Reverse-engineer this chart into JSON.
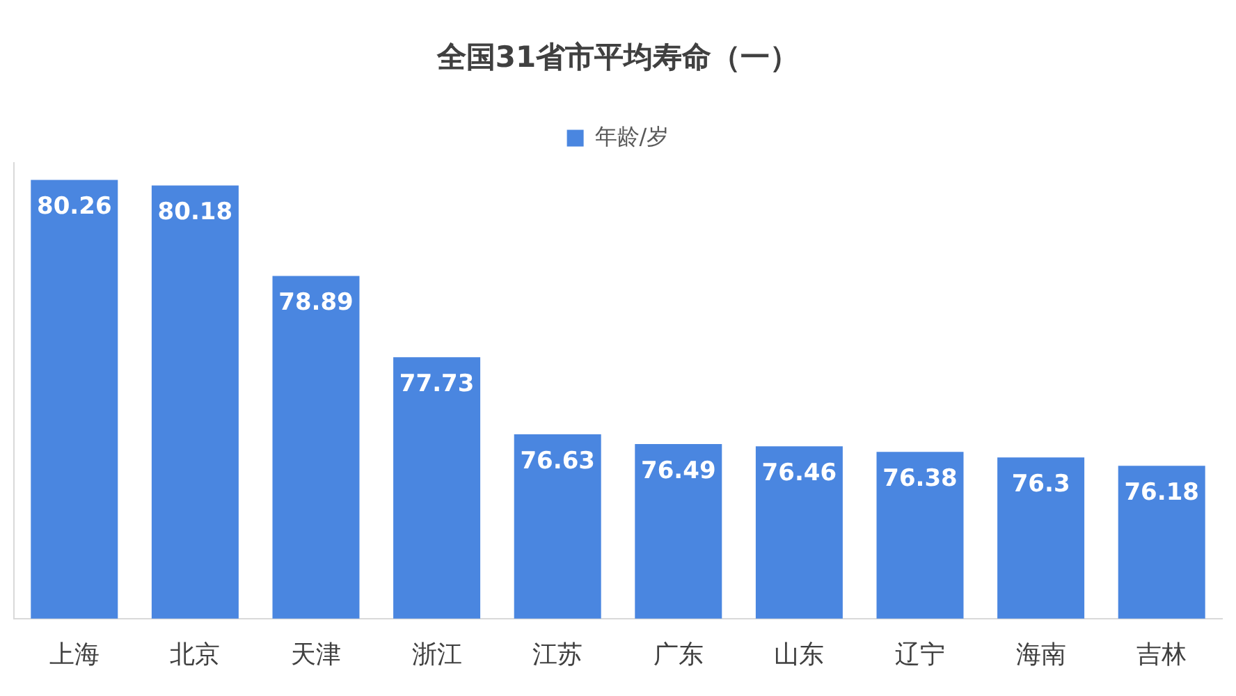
{
  "chart_data": {
    "type": "bar",
    "title": "全国31省市平均寿命（一）",
    "categories": [
      "上海",
      "北京",
      "天津",
      "浙江",
      "江苏",
      "广东",
      "山东",
      "辽宁",
      "海南",
      "吉林"
    ],
    "series": [
      {
        "name": "年龄/岁",
        "color": "#4a86e0",
        "values": [
          80.26,
          80.18,
          78.89,
          77.73,
          76.63,
          76.49,
          76.46,
          76.38,
          76.3,
          76.18
        ]
      }
    ],
    "ylim": [
      74.0,
      80.5
    ],
    "tick_labels": "x",
    "grid": false,
    "legend": "top",
    "data_labels": true
  }
}
